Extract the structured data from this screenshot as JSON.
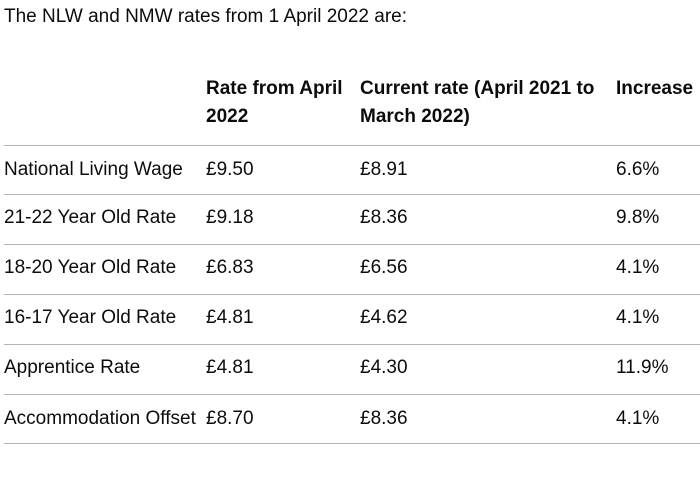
{
  "intro": "The NLW and NMW rates from 1 April 2022 are:",
  "table": {
    "headers": [
      "",
      "Rate from April 2022",
      "Current rate (April 2021 to March 2022)",
      "Increase"
    ],
    "rows": [
      [
        "National Living Wage",
        "£9.50",
        "£8.91",
        "6.6%"
      ],
      [
        "21-22 Year Old Rate",
        "£9.18",
        "£8.36",
        "9.8%"
      ],
      [
        "18-20 Year Old Rate",
        "£6.83",
        "£6.56",
        "4.1%"
      ],
      [
        "16-17 Year Old Rate",
        "£4.81",
        "£4.62",
        "4.1%"
      ],
      [
        "Apprentice Rate",
        "£4.81",
        "£4.30",
        "11.9%"
      ],
      [
        "Accommodation Offset",
        "£8.70",
        "£8.36",
        "4.1%"
      ]
    ]
  }
}
